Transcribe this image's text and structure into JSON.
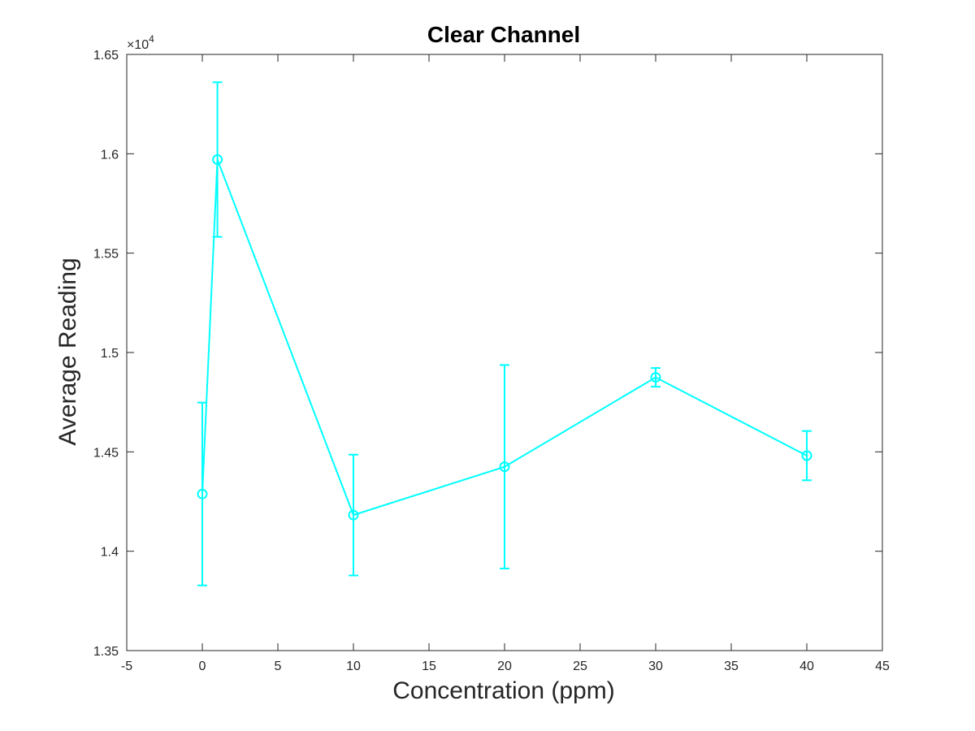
{
  "chart_data": {
    "type": "line",
    "title": "Clear Channel",
    "xlabel": "Concentration (ppm)",
    "ylabel": "Average Reading",
    "y_exponent_base": "×10",
    "y_exponent_power": "4",
    "xlim": [
      -5,
      45
    ],
    "ylim": [
      1.35,
      1.65
    ],
    "x_ticks": [
      -5,
      0,
      5,
      10,
      15,
      20,
      25,
      30,
      35,
      40,
      45
    ],
    "x_tick_labels": [
      "-5",
      "0",
      "5",
      "10",
      "15",
      "20",
      "25",
      "30",
      "35",
      "40",
      "45"
    ],
    "y_ticks": [
      1.35,
      1.4,
      1.45,
      1.5,
      1.55,
      1.6,
      1.65
    ],
    "y_tick_labels": [
      "1.35",
      "1.4",
      "1.45",
      "1.5",
      "1.55",
      "1.6",
      "1.65"
    ],
    "grid": false,
    "color": "#00FFFF",
    "series": [
      {
        "x": [
          0,
          1,
          10,
          20,
          30,
          40
        ],
        "y": [
          1.4288,
          1.5971,
          1.4182,
          1.4425,
          1.4875,
          1.4481
        ],
        "err": [
          0.046,
          0.0389,
          0.0304,
          0.0512,
          0.0047,
          0.0124
        ]
      }
    ]
  }
}
